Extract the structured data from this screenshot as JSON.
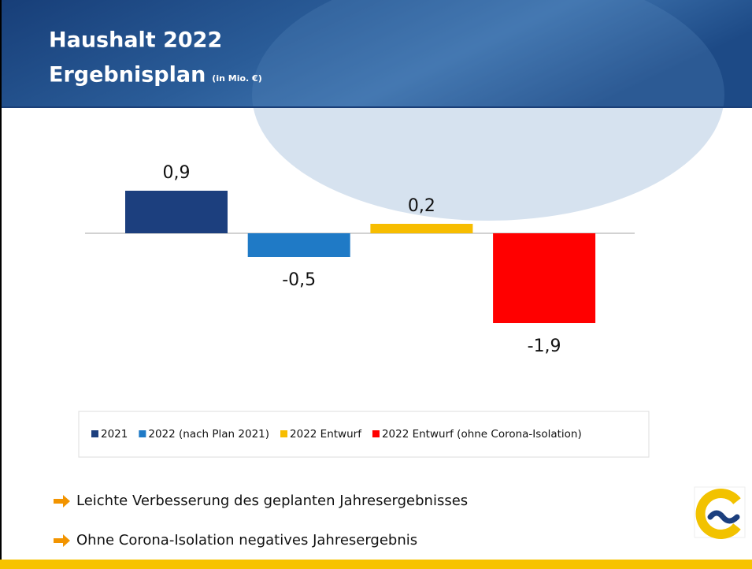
{
  "chart_data": {
    "type": "bar",
    "title": "Haushalt 2022",
    "subtitle": "Ergebnisplan",
    "unit_note": "(in Mio. €)",
    "categories": [
      null
    ],
    "series": [
      {
        "name": "2021",
        "color": "#1c3f7e",
        "values": [
          0.9
        ],
        "value_labels": [
          "0,9"
        ]
      },
      {
        "name": "2022 (nach Plan 2021)",
        "color": "#1f7ac6",
        "values": [
          -0.5
        ],
        "value_labels": [
          "-0,5"
        ]
      },
      {
        "name": "2022 Entwurf",
        "color": "#f7bd00",
        "values": [
          0.2
        ],
        "value_labels": [
          "0,2"
        ]
      },
      {
        "name": "2022 Entwurf (ohne Corona-Isolation)",
        "color": "#ff0000",
        "values": [
          -1.9
        ],
        "value_labels": [
          "-1,9"
        ]
      }
    ],
    "legend": "bottom"
  },
  "bullets": [
    "Leichte Verbesserung des geplanten Jahresergebnisses",
    "Ohne Corona-Isolation negatives Jahresergebnis"
  ]
}
